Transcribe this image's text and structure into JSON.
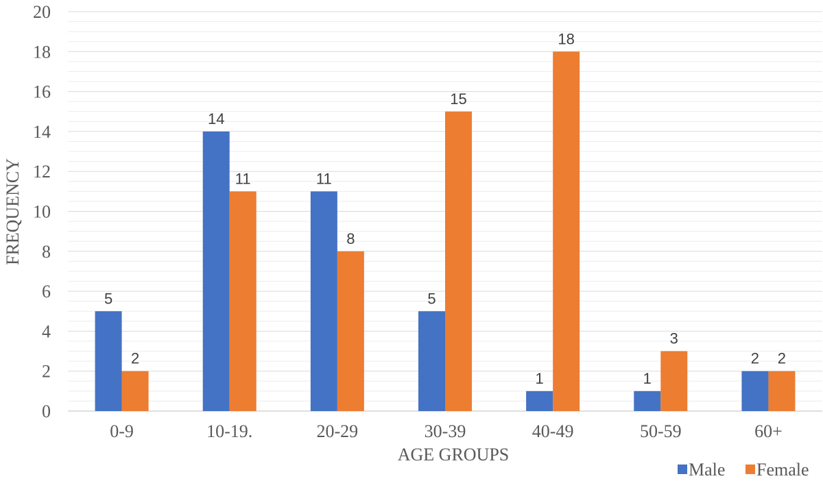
{
  "chart_data": {
    "type": "bar",
    "title": "",
    "xlabel": "AGE GROUPS",
    "ylabel": "FREQUENCY",
    "categories": [
      "0-9",
      "10-19.",
      "20-29",
      "30-39",
      "40-49",
      "50-59",
      "60+"
    ],
    "series": [
      {
        "name": "Male",
        "color": "#4472C4",
        "values": [
          5,
          14,
          11,
          5,
          1,
          1,
          2
        ]
      },
      {
        "name": "Female",
        "color": "#ED7D31",
        "values": [
          2,
          11,
          8,
          15,
          18,
          3,
          2
        ]
      }
    ],
    "ylim": [
      0,
      20
    ],
    "yticks": [
      0,
      2,
      4,
      6,
      8,
      10,
      12,
      14,
      16,
      18,
      20
    ],
    "minor_gridlines": true,
    "legend_position": "bottom-right",
    "data_labels": true
  }
}
